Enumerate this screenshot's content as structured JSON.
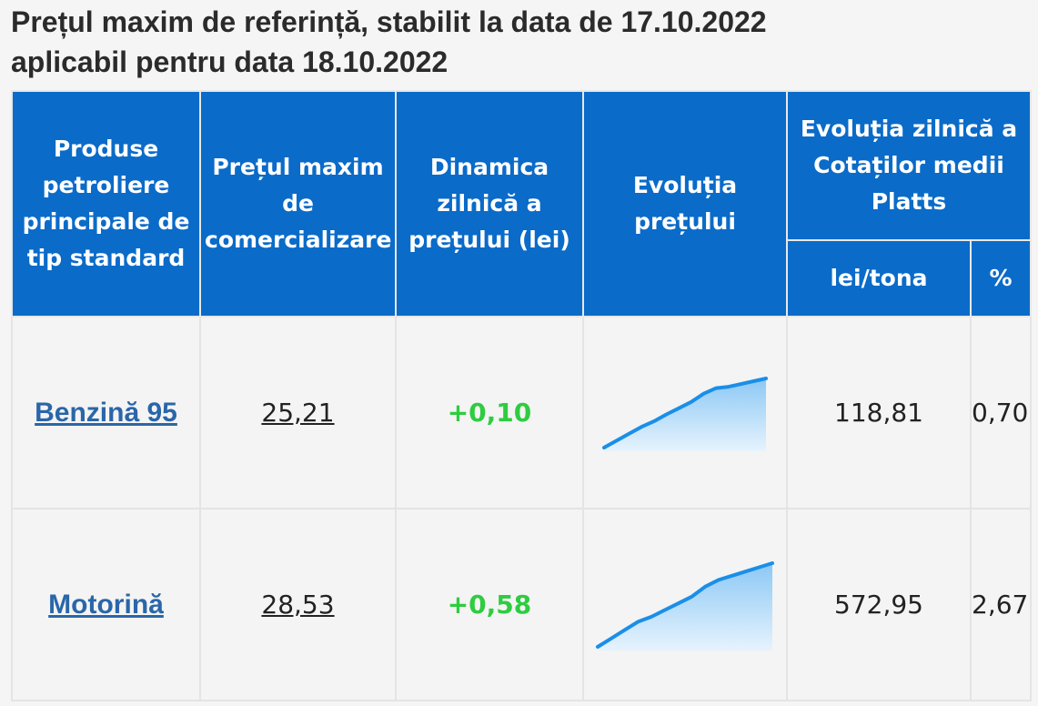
{
  "title": {
    "line1": "Prețul maxim de referință, stabilit la data de 17.10.2022",
    "line2": "aplicabil pentru data 18.10.2022"
  },
  "table": {
    "headers": {
      "product": "Produse petroliere principale de tip standard",
      "price": "Prețul maxim de comercializare",
      "dynamics": "Dinamica zilnică a prețului (lei)",
      "evolution": "Evoluția prețului",
      "platts": "Evoluția zilnică a Cotaților medii Platts",
      "lei_tona": "lei/tona",
      "percent": "%"
    },
    "rows": [
      {
        "product": "Benzină 95",
        "price": "25,21",
        "dynamics": "+0,10",
        "platts_lei_tona": "118,81",
        "platts_percent": "0,70",
        "trend": [
          0.0,
          0.1,
          0.2,
          0.3,
          0.38,
          0.48,
          0.57,
          0.66,
          0.78,
          0.86,
          0.88,
          0.92,
          0.96,
          1.0
        ]
      },
      {
        "product": "Motorină",
        "price": "28,53",
        "dynamics": "+0,58",
        "platts_lei_tona": "572,95",
        "platts_percent": "2,67",
        "trend": [
          0.0,
          0.1,
          0.2,
          0.3,
          0.36,
          0.44,
          0.52,
          0.6,
          0.72,
          0.8,
          0.85,
          0.9,
          0.95,
          1.0
        ]
      }
    ]
  },
  "colors": {
    "header_bg": "#0a6bc9",
    "link": "#2a66a8",
    "positive": "#2ecc40",
    "spark_line": "#1a8fe8"
  }
}
